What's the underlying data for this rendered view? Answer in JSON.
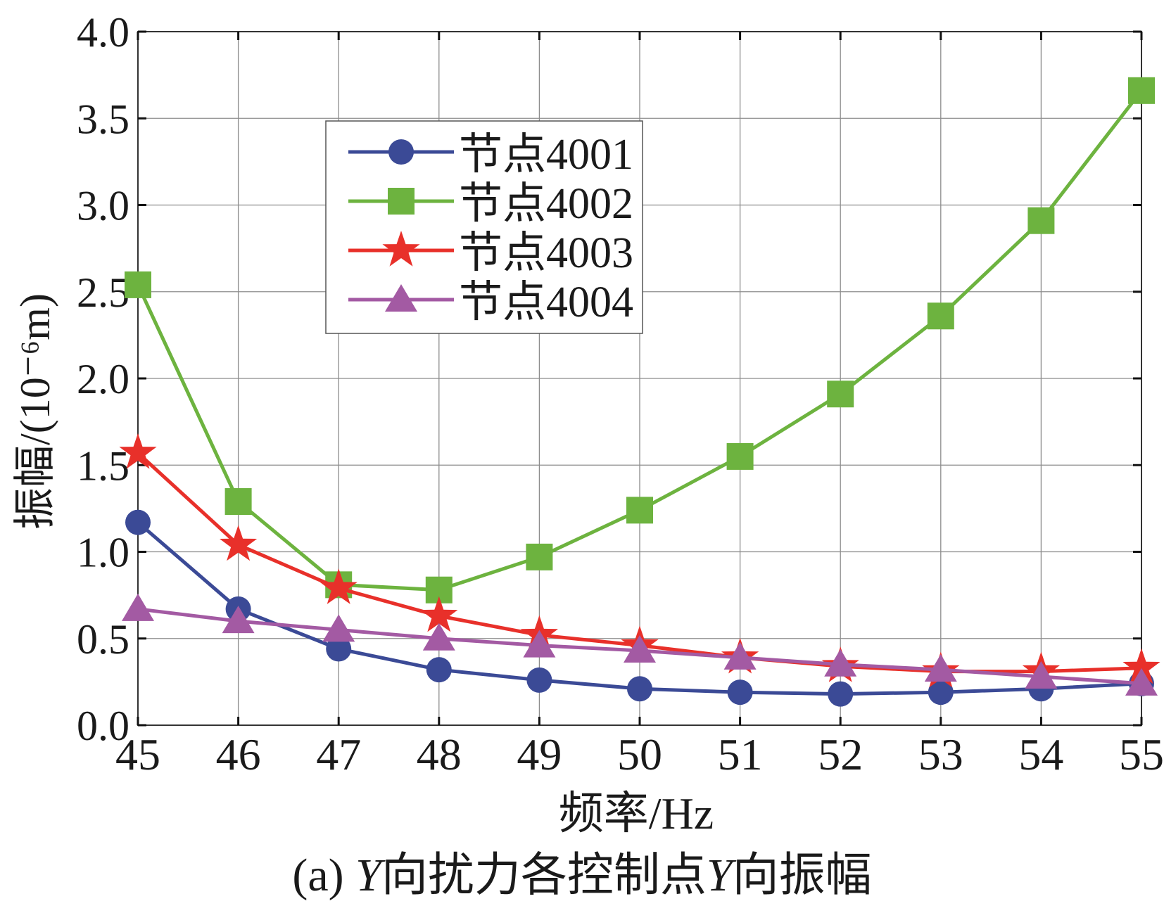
{
  "chart_data": {
    "type": "line",
    "xlabel": "频率/Hz",
    "ylabel": "振幅/(10⁻⁶m)",
    "xlim": [
      45,
      55
    ],
    "ylim": [
      0.0,
      4.0
    ],
    "x_ticks": [
      "45",
      "46",
      "47",
      "48",
      "49",
      "50",
      "51",
      "52",
      "53",
      "54",
      "55"
    ],
    "y_ticks": [
      "0.0",
      "0.5",
      "1.0",
      "1.5",
      "2.0",
      "2.5",
      "3.0",
      "3.5",
      "4.0"
    ],
    "grid": true,
    "legend_position": "top-left",
    "x": [
      45,
      46,
      47,
      48,
      49,
      50,
      51,
      52,
      53,
      54,
      55
    ],
    "series": [
      {
        "name": "节点4001",
        "marker": "circle",
        "color": "#3b4a96",
        "values": [
          1.17,
          0.67,
          0.44,
          0.32,
          0.26,
          0.21,
          0.19,
          0.18,
          0.19,
          0.21,
          0.24
        ]
      },
      {
        "name": "节点4002",
        "marker": "square",
        "color": "#6db33f",
        "values": [
          2.54,
          1.29,
          0.81,
          0.78,
          0.97,
          1.24,
          1.55,
          1.91,
          2.36,
          2.91,
          3.66
        ]
      },
      {
        "name": "节点4003",
        "marker": "star",
        "color": "#e8302a",
        "values": [
          1.57,
          1.04,
          0.79,
          0.63,
          0.52,
          0.46,
          0.39,
          0.34,
          0.31,
          0.31,
          0.33
        ]
      },
      {
        "name": "节点4004",
        "marker": "triangle",
        "color": "#a35aa3",
        "values": [
          0.67,
          0.6,
          0.55,
          0.5,
          0.46,
          0.43,
          0.39,
          0.35,
          0.32,
          0.28,
          0.24
        ]
      }
    ]
  },
  "caption": {
    "prefix": "(a) ",
    "y1": "Y",
    "mid": "向扰力各控制点",
    "y2": "Y",
    "suffix": "向振幅"
  }
}
